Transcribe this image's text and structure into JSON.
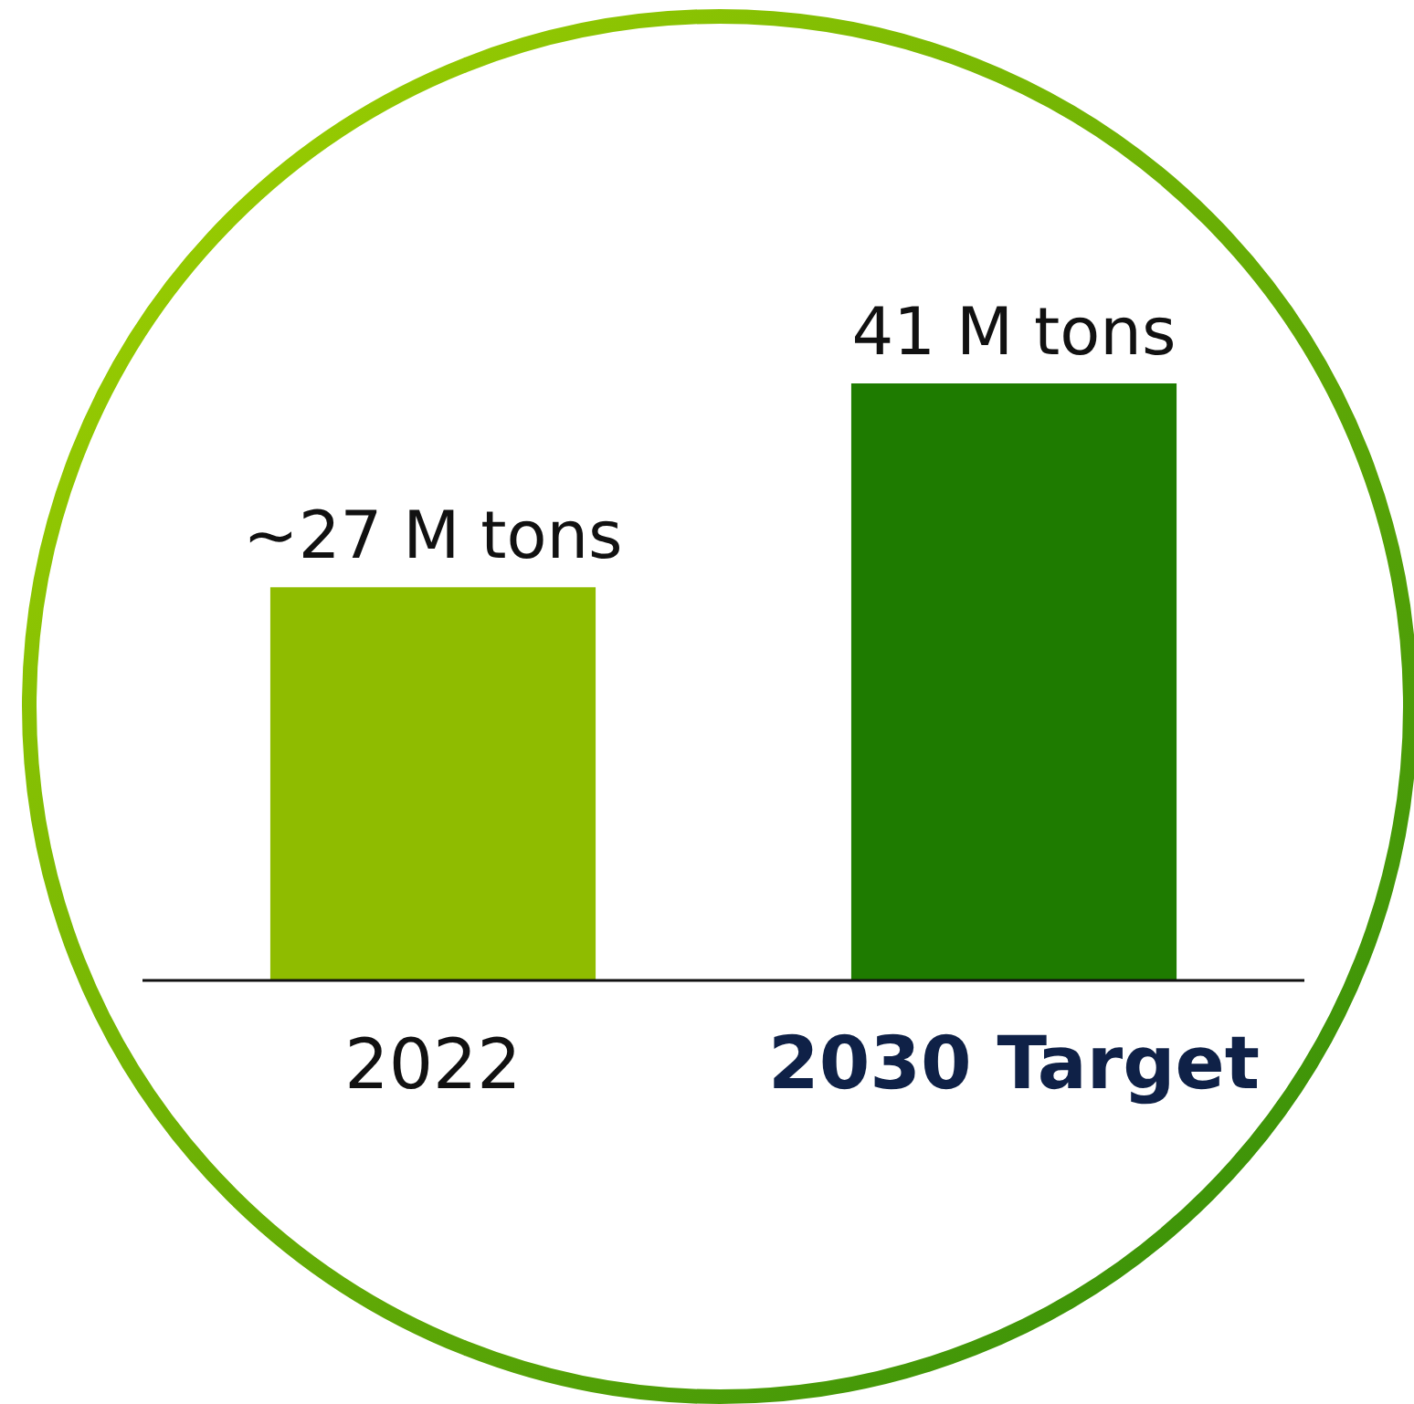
{
  "chart_data": {
    "type": "bar",
    "categories": [
      "2022",
      "2030 Target"
    ],
    "values": [
      27,
      41
    ],
    "colors": [
      "#8fbc00",
      "#1e7b00"
    ],
    "value_labels": [
      "~27 M tons",
      "41 M tons"
    ]
  }
}
